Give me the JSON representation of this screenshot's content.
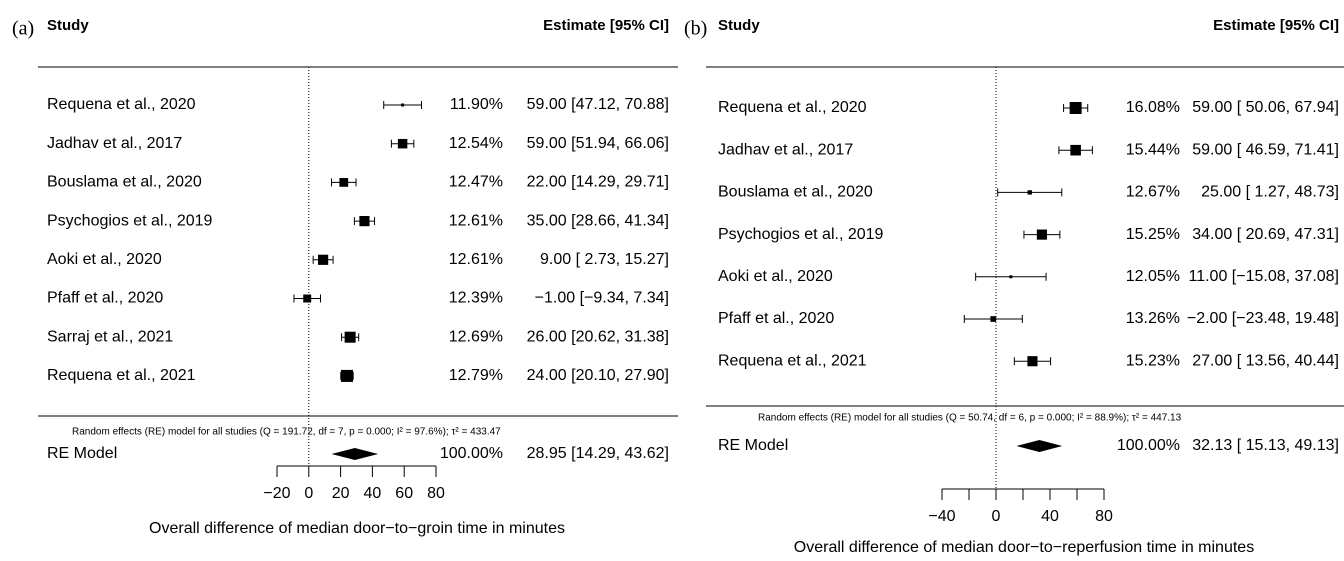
{
  "chart_data": [
    {
      "type": "forest",
      "panel_label": "(a)",
      "study_header": "Study",
      "estimate_header": "Estimate [95% CI]",
      "categories": [
        "Requena et al., 2020",
        "Jadhav et al., 2017",
        "Bouslama et al., 2020",
        "Psychogios et al., 2019",
        "Aoki et al., 2020",
        "Pfaff et al., 2020",
        "Sarraj et al., 2021",
        "Requena et al., 2021"
      ],
      "values": [
        59.0,
        59.0,
        22.0,
        35.0,
        9.0,
        -1.0,
        26.0,
        24.0
      ],
      "lower": [
        47.12,
        51.94,
        14.29,
        28.66,
        2.73,
        -9.34,
        20.62,
        20.1
      ],
      "upper": [
        70.88,
        66.06,
        29.71,
        41.34,
        15.27,
        7.34,
        31.38,
        27.9
      ],
      "weights": [
        11.9,
        12.54,
        12.47,
        12.61,
        12.61,
        12.39,
        12.69,
        12.79
      ],
      "weight_labels": [
        "11.90%",
        "12.54%",
        "12.47%",
        "12.61%",
        "12.61%",
        "12.39%",
        "12.69%",
        "12.79%"
      ],
      "value_labels": [
        "59.00 [47.12, 70.88]",
        "59.00 [51.94, 66.06]",
        "22.00 [14.29, 29.71]",
        "35.00 [28.66, 41.34]",
        "9.00 [ 2.73, 15.27]",
        "−1.00 [−9.34,  7.34]",
        "26.00 [20.62, 31.38]",
        "24.00 [20.10, 27.90]"
      ],
      "note": "Random effects (RE) model for all studies (Q = 191.72, df = 7, p = 0.000; I² = 97.6%); τ² = 433.47",
      "summary": {
        "label": "RE Model",
        "value": 28.95,
        "lower": 14.29,
        "upper": 43.62,
        "weight": 100.0,
        "weight_label": "100.00%",
        "value_label": "28.95 [14.29, 43.62]"
      },
      "xlim": [
        -20,
        80
      ],
      "xticks": [
        {
          "value": -20,
          "label": "−20"
        },
        0,
        20,
        40,
        60,
        80
      ],
      "xlabel": "Overall difference of median door−to−groin time in minutes"
    },
    {
      "type": "forest",
      "panel_label": "(b)",
      "study_header": "Study",
      "estimate_header": "Estimate [95% CI]",
      "categories": [
        "Requena et al., 2020",
        "Jadhav et al., 2017",
        "Bouslama et al., 2020",
        "Psychogios et al., 2019",
        "Aoki et al., 2020",
        "Pfaff et al., 2020",
        "Requena et al., 2021"
      ],
      "values": [
        59.0,
        59.0,
        25.0,
        34.0,
        11.0,
        -2.0,
        27.0
      ],
      "lower": [
        50.06,
        46.59,
        1.27,
        20.69,
        -15.08,
        -23.48,
        13.56
      ],
      "upper": [
        67.94,
        71.41,
        48.73,
        47.31,
        37.08,
        19.48,
        40.44
      ],
      "weights": [
        16.08,
        15.44,
        12.67,
        15.25,
        12.05,
        13.26,
        15.23
      ],
      "weight_labels": [
        "16.08%",
        "15.44%",
        "12.67%",
        "15.25%",
        "12.05%",
        "13.26%",
        "15.23%"
      ],
      "value_labels": [
        "59.00 [ 50.06, 67.94]",
        "59.00 [ 46.59, 71.41]",
        "25.00 [  1.27, 48.73]",
        "34.00 [ 20.69, 47.31]",
        "11.00 [−15.08, 37.08]",
        "−2.00 [−23.48, 19.48]",
        "27.00 [ 13.56, 40.44]"
      ],
      "note": "Random effects (RE) model for all studies (Q = 50.74, df = 6, p = 0.000; I² = 88.9%); τ² = 447.13",
      "summary": {
        "label": "RE Model",
        "value": 32.13,
        "lower": 15.13,
        "upper": 49.13,
        "weight": 100.0,
        "weight_label": "100.00%",
        "value_label": "32.13 [ 15.13, 49.13]"
      },
      "xlim": [
        -40,
        80
      ],
      "xticks": [
        {
          "value": -40,
          "label": "−40"
        },
        0,
        40,
        80
      ],
      "minor_xticks": [
        -20,
        20,
        60
      ],
      "xlabel": "Overall difference of median door−to−reperfusion time in minutes"
    }
  ]
}
